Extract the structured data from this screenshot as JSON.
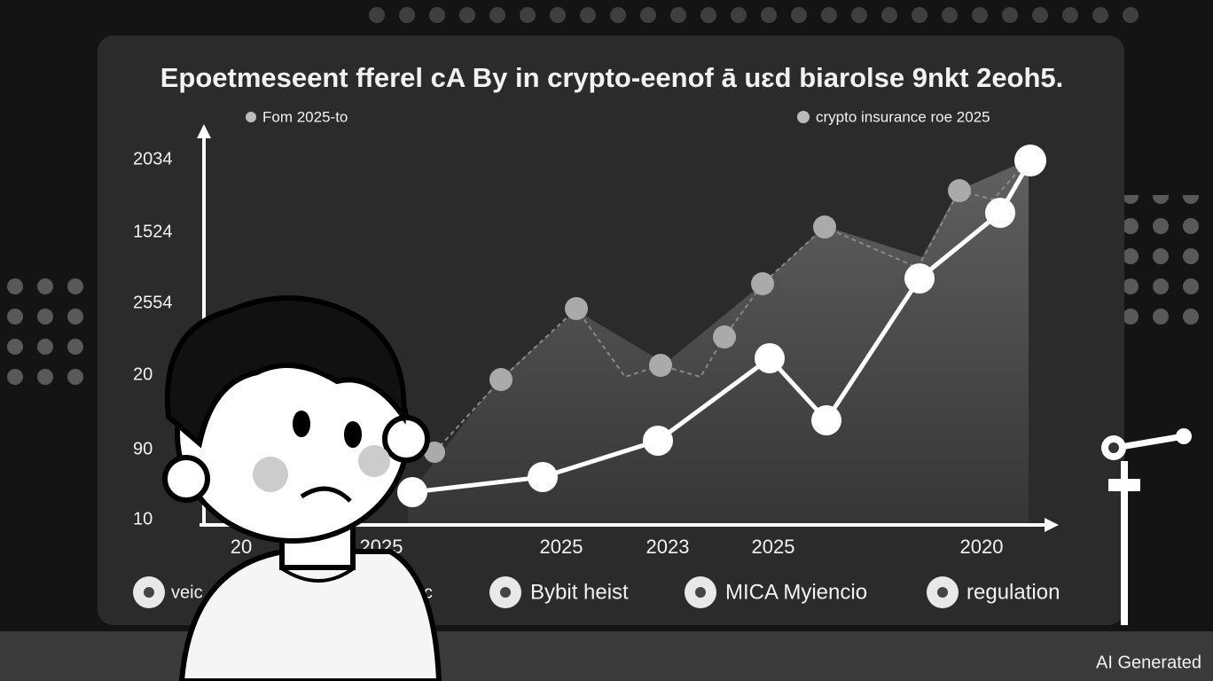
{
  "title": "Epoetmeseent fferel cA By in crypto-eenof ā uɛd biarolse 9nkt 2eoh5.",
  "legend": [
    "Fom 2025-to",
    "crypto insurance roe 2025"
  ],
  "y_labels": [
    "2034",
    "1524",
    "2554",
    "20",
    "90",
    "10"
  ],
  "x_labels": [
    "20",
    "2025",
    "2025",
    "2023",
    "2025",
    "2020"
  ],
  "tags": [
    "veic",
    "nneic",
    "Bybit heist",
    "MICA Myiencio",
    "regulation"
  ],
  "watermark": "AI Generated"
}
